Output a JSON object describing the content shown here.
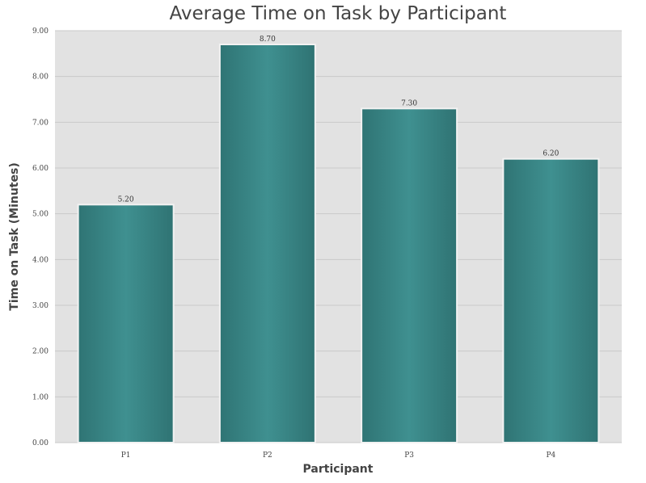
{
  "colors": {
    "background": "#ffffff",
    "plot_background": "#e2e2e2",
    "bar": "#3a8585",
    "bar_highlight": "#4a9a9a",
    "bar_edge": "#2e6d6d"
  },
  "chart_data": {
    "type": "bar",
    "title": "Average Time on Task by Participant",
    "xlabel": "Participant",
    "ylabel": "Time on Task (Minutes)",
    "categories": [
      "P1",
      "P2",
      "P3",
      "P4"
    ],
    "values": [
      5.2,
      8.7,
      7.3,
      6.2
    ],
    "data_labels": [
      "5.20",
      "8.70",
      "7.30",
      "6.20"
    ],
    "ylim": [
      0,
      9
    ],
    "yticks": [
      0,
      1,
      2,
      3,
      4,
      5,
      6,
      7,
      8,
      9
    ],
    "ytick_labels": [
      "0.00",
      "1.00",
      "2.00",
      "3.00",
      "4.00",
      "5.00",
      "6.00",
      "7.00",
      "8.00",
      "9.00"
    ],
    "grid": true,
    "legend": "none"
  }
}
